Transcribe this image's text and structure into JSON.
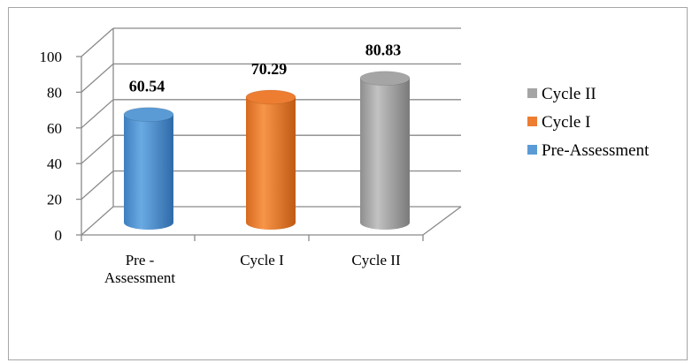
{
  "chart_data": {
    "type": "bar",
    "style": "3d-cylinder",
    "categories": [
      "Pre -\nAssessment",
      "Cycle I",
      "Cycle II"
    ],
    "values": [
      60.54,
      70.29,
      80.83
    ],
    "data_labels": [
      "60.54",
      "70.29",
      "80.83"
    ],
    "bar_colors": [
      "#5b9bd5",
      "#ed7d31",
      "#a5a5a5"
    ],
    "ylim": [
      0,
      100
    ],
    "yticks": [
      0,
      20,
      40,
      60,
      80,
      100
    ],
    "ytick_labels": [
      "0",
      "20",
      "40",
      "60",
      "80",
      "100"
    ],
    "grid": true,
    "legend_position": "right",
    "legend": [
      {
        "label": "Cycle II",
        "color": "#a5a5a5"
      },
      {
        "label": "Cycle I",
        "color": "#ed7d31"
      },
      {
        "label": "Pre-Assessment",
        "color": "#5b9bd5"
      }
    ]
  }
}
